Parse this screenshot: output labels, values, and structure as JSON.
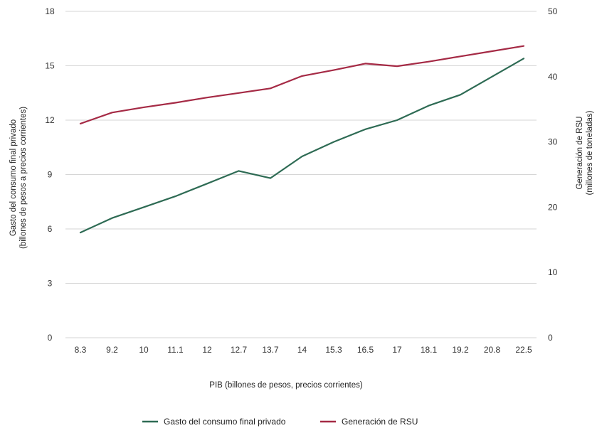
{
  "chart_data": {
    "type": "line",
    "categories": [
      "8.3",
      "9.2",
      "10",
      "11.1",
      "12",
      "12.7",
      "13.7",
      "14",
      "15.3",
      "16.5",
      "17",
      "18.1",
      "19.2",
      "20.8",
      "22.5"
    ],
    "xlabel": "PIB (billones de pesos, precios corrientes)",
    "ylabel_left": [
      "Gasto del consumo final privado",
      "(billones de pesos a precios corrientes)"
    ],
    "ylabel_right": [
      "Generación de RSU",
      "(millones de toneladas)"
    ],
    "ylim_left": [
      0,
      18
    ],
    "yticks_left": [
      0,
      3,
      6,
      9,
      12,
      15,
      18
    ],
    "ylim_right": [
      0,
      50
    ],
    "yticks_right": [
      0,
      10,
      20,
      30,
      40,
      50
    ],
    "grid": true,
    "legend_position": "bottom",
    "series": [
      {
        "name": "Gasto del consumo final privado",
        "axis": "left",
        "color": "#2e6b54",
        "values": [
          5.8,
          6.6,
          7.2,
          7.8,
          8.5,
          9.2,
          8.8,
          10.0,
          10.8,
          11.5,
          12.0,
          12.8,
          13.4,
          14.4,
          15.4
        ]
      },
      {
        "name": "Generación de RSU",
        "axis": "right",
        "color": "#a52a45",
        "values": [
          32.8,
          34.5,
          35.3,
          36.0,
          36.8,
          37.5,
          38.2,
          40.1,
          41.0,
          42.0,
          41.6,
          42.3,
          43.1,
          43.9,
          44.7
        ]
      }
    ]
  }
}
